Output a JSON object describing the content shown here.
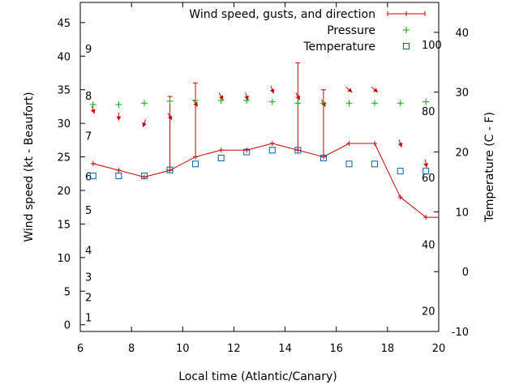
{
  "chart_data": {
    "type": "line",
    "xlabel": "Local time (Atlantic/Canary)",
    "ylabel": "Wind speed (kt - Beaufort)",
    "y2label": "Temperature (C - F)",
    "xlim": [
      6,
      20
    ],
    "ylim": [
      -1,
      48
    ],
    "y2lim": [
      -10,
      45
    ],
    "x_ticks": [
      "6",
      "8",
      "10",
      "12",
      "14",
      "16",
      "18",
      "20"
    ],
    "y_ticks": [
      "0",
      "5",
      "10",
      "15",
      "20",
      "25",
      "30",
      "35",
      "40",
      "45"
    ],
    "y2_ticks": [
      "-10",
      "0",
      "10",
      "20",
      "30",
      "40"
    ],
    "beaufort_scale": [
      {
        "label": "1",
        "at": 1
      },
      {
        "label": "2",
        "at": 4
      },
      {
        "label": "3",
        "at": 7
      },
      {
        "label": "4",
        "at": 11
      },
      {
        "label": "5",
        "at": 17
      },
      {
        "label": "6",
        "at": 22
      },
      {
        "label": "7",
        "at": 28
      },
      {
        "label": "8",
        "at": 34
      },
      {
        "label": "9",
        "at": 41
      }
    ],
    "fahrenheit_scale": [
      {
        "label": "20",
        "at": -6.7
      },
      {
        "label": "40",
        "at": 4.4
      },
      {
        "label": "60",
        "at": 15.6
      },
      {
        "label": "80",
        "at": 26.7
      },
      {
        "label": "100",
        "at": 37.8
      }
    ],
    "series": [
      {
        "name": "Wind speed, gusts, and direction",
        "color": "#cc0000",
        "x": [
          6.5,
          7.5,
          8.5,
          9.5,
          10.5,
          11.5,
          12.5,
          13.5,
          14.5,
          15.5,
          16.5,
          17.5,
          18.5,
          19.5
        ],
        "values": [
          24,
          23,
          22,
          23,
          25,
          26,
          26,
          27,
          26,
          25,
          27,
          27,
          19,
          16
        ],
        "gusts": [
          null,
          null,
          null,
          34,
          36,
          null,
          null,
          null,
          39,
          35,
          null,
          null,
          null,
          null
        ],
        "direction_deg": [
          340,
          0,
          20,
          330,
          330,
          330,
          340,
          340,
          330,
          330,
          310,
          310,
          340,
          350
        ]
      },
      {
        "name": "Pressure",
        "color": "#00aa00",
        "x": [
          6.5,
          7.5,
          8.5,
          9.5,
          10.5,
          11.5,
          12.5,
          13.5,
          14.5,
          15.5,
          16.5,
          17.5,
          18.5,
          19.5
        ],
        "values": [
          32.8,
          32.8,
          33,
          33.3,
          33.4,
          33.4,
          33.4,
          33.2,
          33,
          33,
          33,
          33,
          33,
          33.2
        ]
      },
      {
        "name": "Temperature",
        "color": "#0060ad",
        "x": [
          6.5,
          7.5,
          8.5,
          9.5,
          10.5,
          11.5,
          12.5,
          13.5,
          14.5,
          15.5,
          16.5,
          17.5,
          18.5,
          19.5
        ],
        "values": [
          16,
          16,
          16,
          17,
          18,
          19,
          20,
          20.3,
          20.3,
          19,
          18,
          18,
          16.8,
          16.8
        ]
      }
    ],
    "legend_position": "top-right"
  }
}
